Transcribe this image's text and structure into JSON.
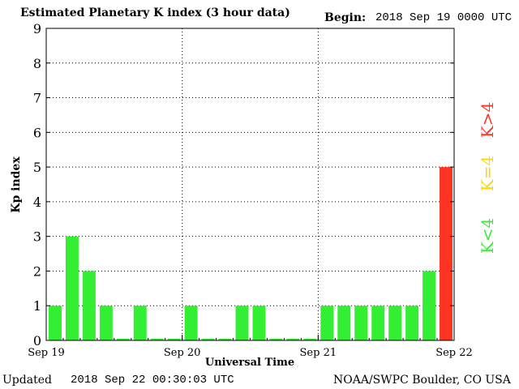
{
  "chart_data": {
    "type": "bar",
    "title": "Estimated Planetary K index (3 hour data)",
    "begin_label": "Begin:",
    "begin_value": "2018 Sep 19 0000 UTC",
    "ylabel": "Kp index",
    "xlabel": "Universal Time",
    "ylim": [
      0,
      9
    ],
    "y_ticks": [
      "0",
      "1",
      "2",
      "3",
      "4",
      "5",
      "6",
      "7",
      "8",
      "9"
    ],
    "x_tick_labels": [
      "Sep 19",
      "Sep 20",
      "Sep 21",
      "Sep 22"
    ],
    "values": [
      1,
      3,
      2,
      1,
      0.05,
      1,
      0.05,
      0.05,
      1,
      0.05,
      0.05,
      1,
      1,
      0.05,
      0.05,
      0.05,
      1,
      1,
      1,
      1,
      1,
      1,
      2,
      5
    ],
    "grid": true,
    "legend": [
      {
        "label": "K<4",
        "color": "#33ee33"
      },
      {
        "label": "K=4",
        "color": "#ffd700"
      },
      {
        "label": "K>4",
        "color": "#ff3322"
      }
    ],
    "colors": {
      "low": "#33ee33",
      "equal": "#ffd700",
      "high": "#ff3322"
    }
  },
  "footer": {
    "updated_label": "Updated",
    "updated_value": "2018 Sep 22 00:30:03 UTC",
    "credit": "NOAA/SWPC Boulder, CO USA"
  }
}
